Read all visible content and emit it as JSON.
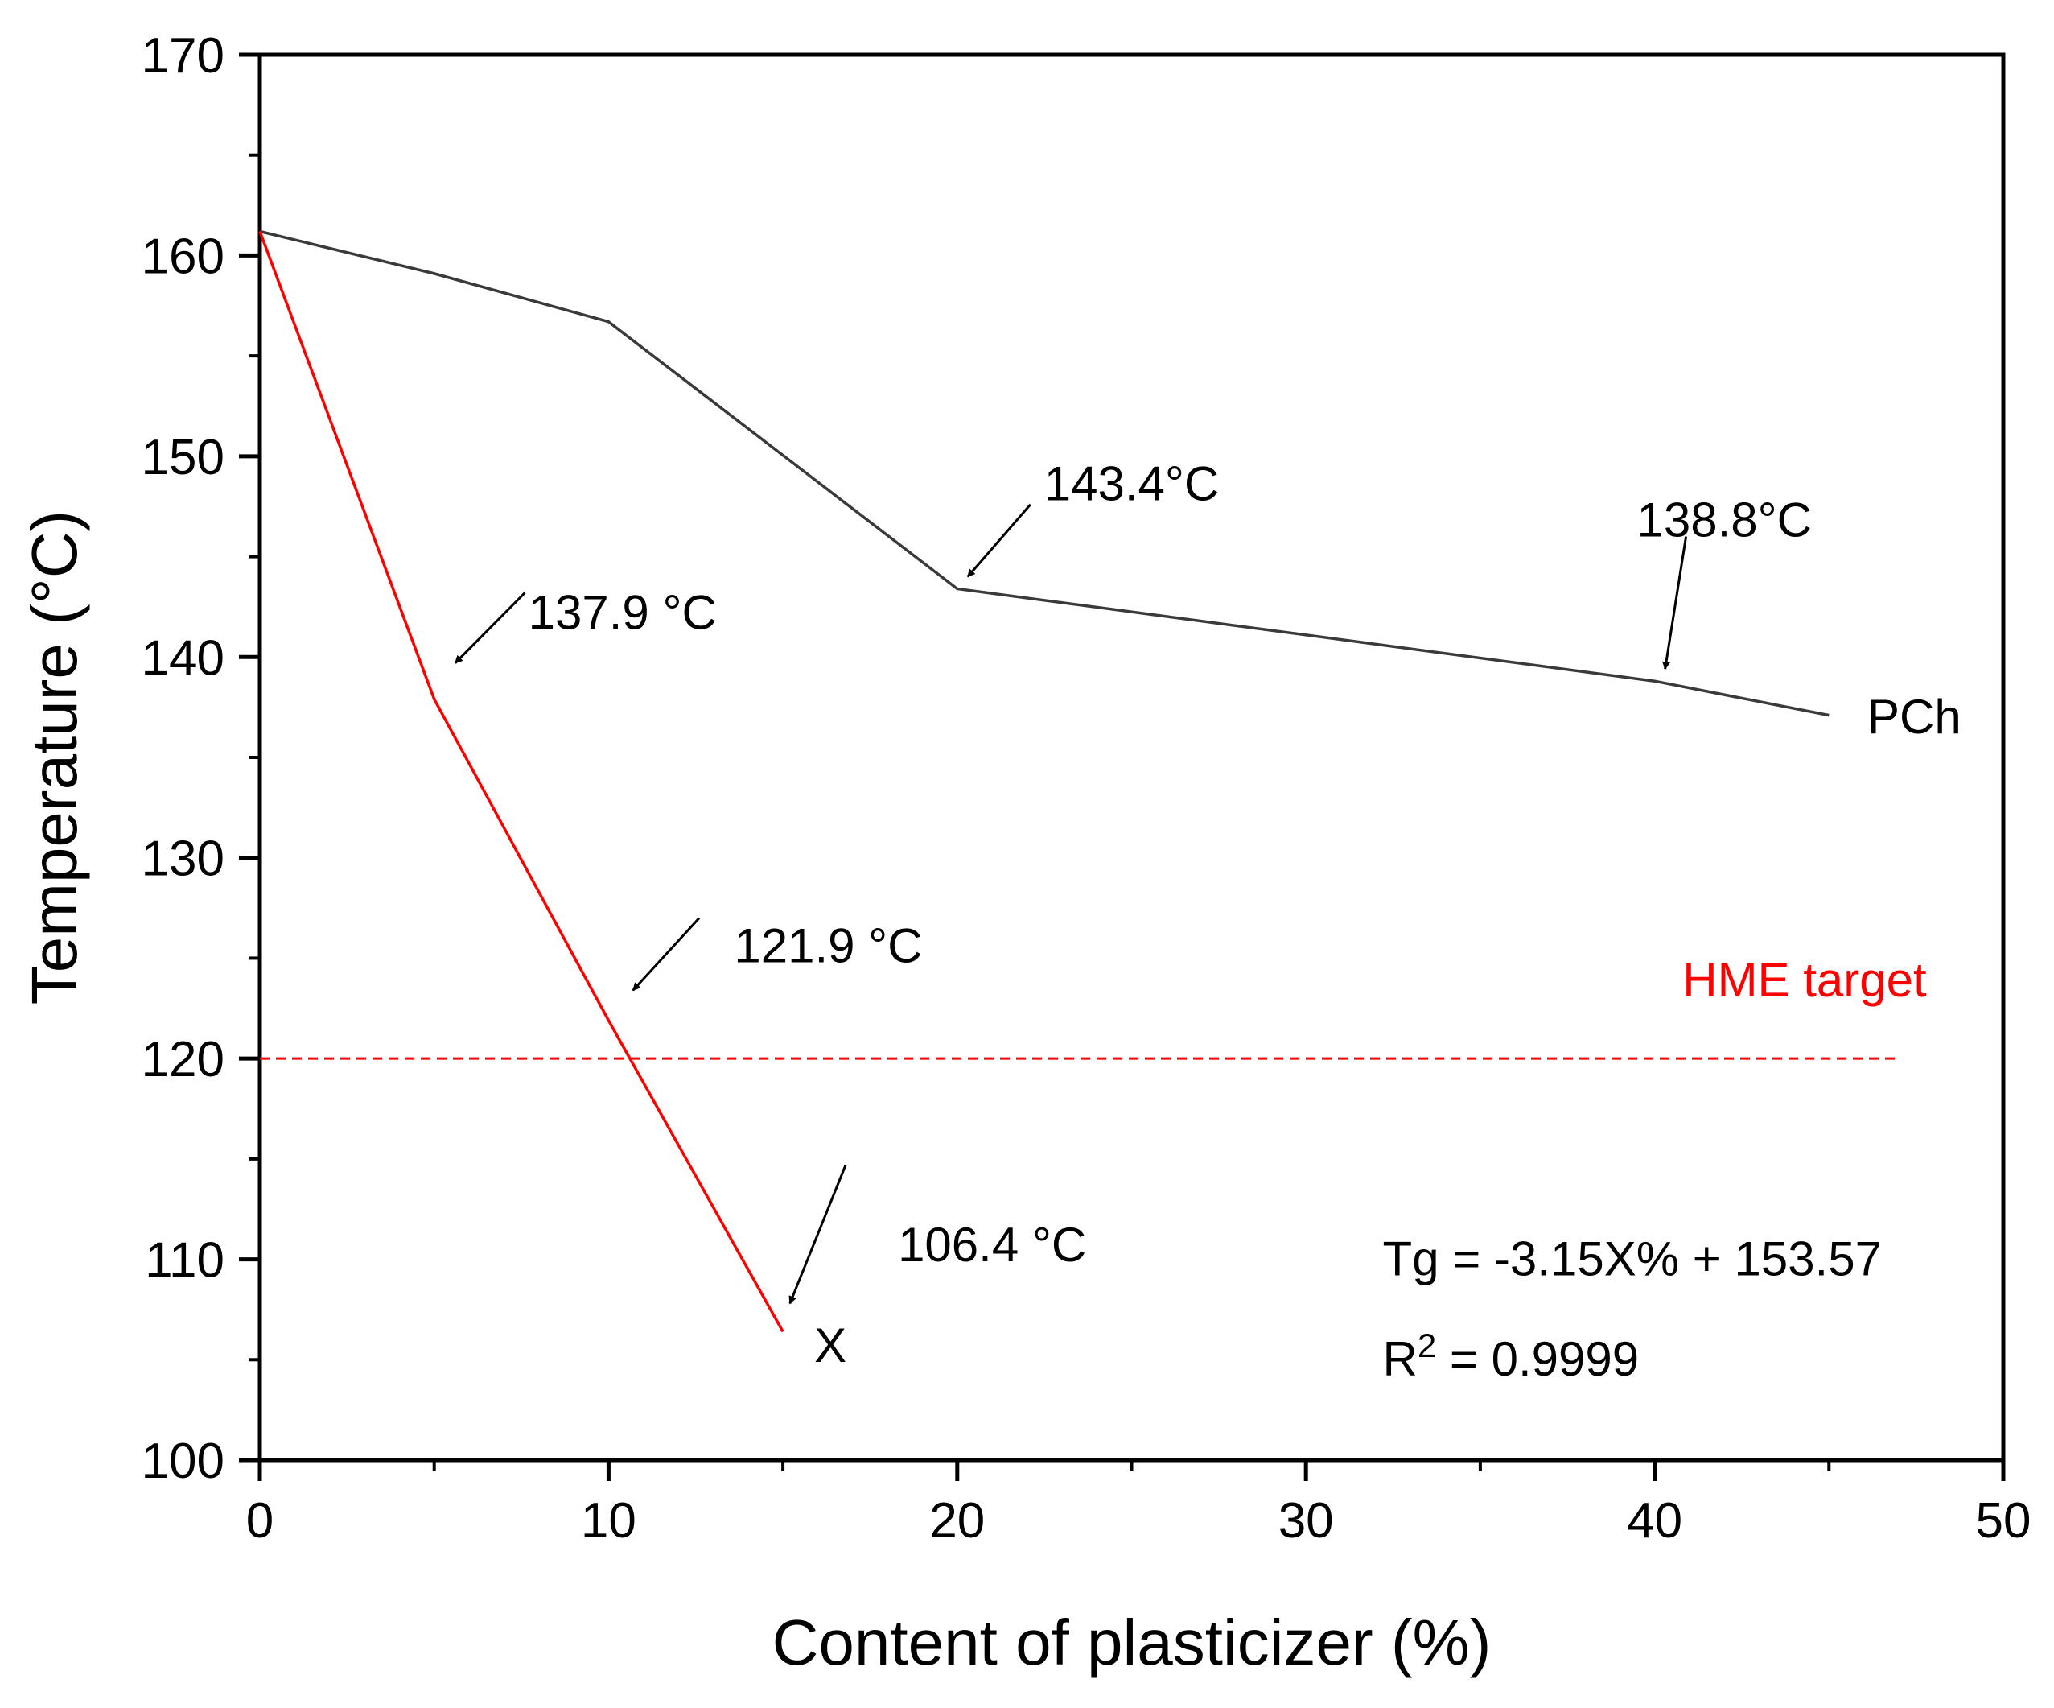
{
  "chart_data": {
    "type": "line",
    "title": "",
    "xlabel": "Content of plasticizer (%)",
    "ylabel": "Temperature (°C)",
    "xlim": [
      0,
      50
    ],
    "ylim": [
      100,
      170
    ],
    "x_ticks": [
      0,
      10,
      20,
      30,
      40,
      50
    ],
    "x_tick_labels": [
      "0",
      "10",
      "20",
      "30",
      "40",
      "50"
    ],
    "y_ticks": [
      100,
      110,
      120,
      130,
      140,
      150,
      160,
      170
    ],
    "y_tick_labels": [
      "100",
      "110",
      "120",
      "130",
      "140",
      "150",
      "160",
      "170"
    ],
    "grid": false,
    "series": [
      {
        "name": "PCh",
        "color": "#3a3a3a",
        "x": [
          0,
          5,
          10,
          20,
          40,
          45
        ],
        "y": [
          161.2,
          159.1,
          156.7,
          143.4,
          138.8,
          137.1
        ]
      },
      {
        "name": "X",
        "color": "#ff0000",
        "x": [
          0,
          5,
          10,
          15
        ],
        "y": [
          161.2,
          137.9,
          121.9,
          106.4
        ]
      }
    ],
    "reference_line": {
      "label": "HME target",
      "y": 120,
      "x_range": [
        0,
        47
      ],
      "color": "#ff0000",
      "style": "dashed"
    },
    "annotations": [
      {
        "text": "143.4°C",
        "x": 20,
        "y": 143.4
      },
      {
        "text": "138.8°C",
        "x": 40,
        "y": 138.8
      },
      {
        "text": "137.9 °C",
        "x": 5,
        "y": 137.9
      },
      {
        "text": "121.9 °C",
        "x": 10.5,
        "y": 122.8
      },
      {
        "text": "106.4 °C",
        "x": 15,
        "y": 106.4
      }
    ],
    "equation": {
      "line1": "Tg = -3.15X% + 153.57",
      "r2_base": "R",
      "r2_sup": "2",
      "r2_rest": " = 0.9999"
    }
  }
}
